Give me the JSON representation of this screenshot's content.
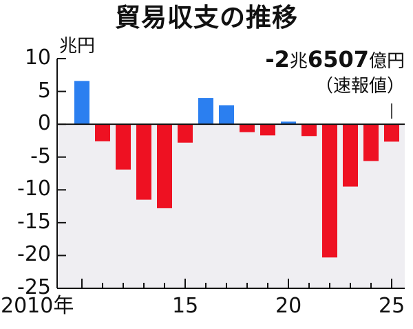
{
  "title": "貿易収支の推移",
  "unit_label": "兆円",
  "colors": {
    "positive": "#2b7ff0",
    "negative": "#ee1122",
    "plot_bg_negative": "#efeef2",
    "axis": "#111111"
  },
  "annotation": {
    "sign": "-",
    "num1": "2",
    "unit1": "兆",
    "num2": "6507",
    "unit2": "億円",
    "note": "（速報値）"
  },
  "chart_data": {
    "type": "bar",
    "title": "貿易収支の推移",
    "xlabel": "",
    "ylabel": "兆円",
    "ylim": [
      -25,
      10
    ],
    "yticks": [
      10,
      5,
      0,
      -5,
      -10,
      -15,
      -20,
      -25
    ],
    "xtick_labels": [
      "2010年",
      "15",
      "20",
      "25"
    ],
    "categories": [
      "2010",
      "2011",
      "2012",
      "2013",
      "2014",
      "2015",
      "2016",
      "2017",
      "2018",
      "2019",
      "2020",
      "2021",
      "2022",
      "2023",
      "2024",
      "2025"
    ],
    "values": [
      6.6,
      -2.6,
      -6.9,
      -11.5,
      -12.8,
      -2.8,
      4.0,
      2.9,
      -1.2,
      -1.7,
      0.4,
      -1.8,
      -20.3,
      -9.5,
      -5.6,
      -2.65
    ],
    "annotations": [
      {
        "x": "2025",
        "text": "-2兆6507億円（速報値）"
      }
    ],
    "grid": false,
    "legend": null
  }
}
